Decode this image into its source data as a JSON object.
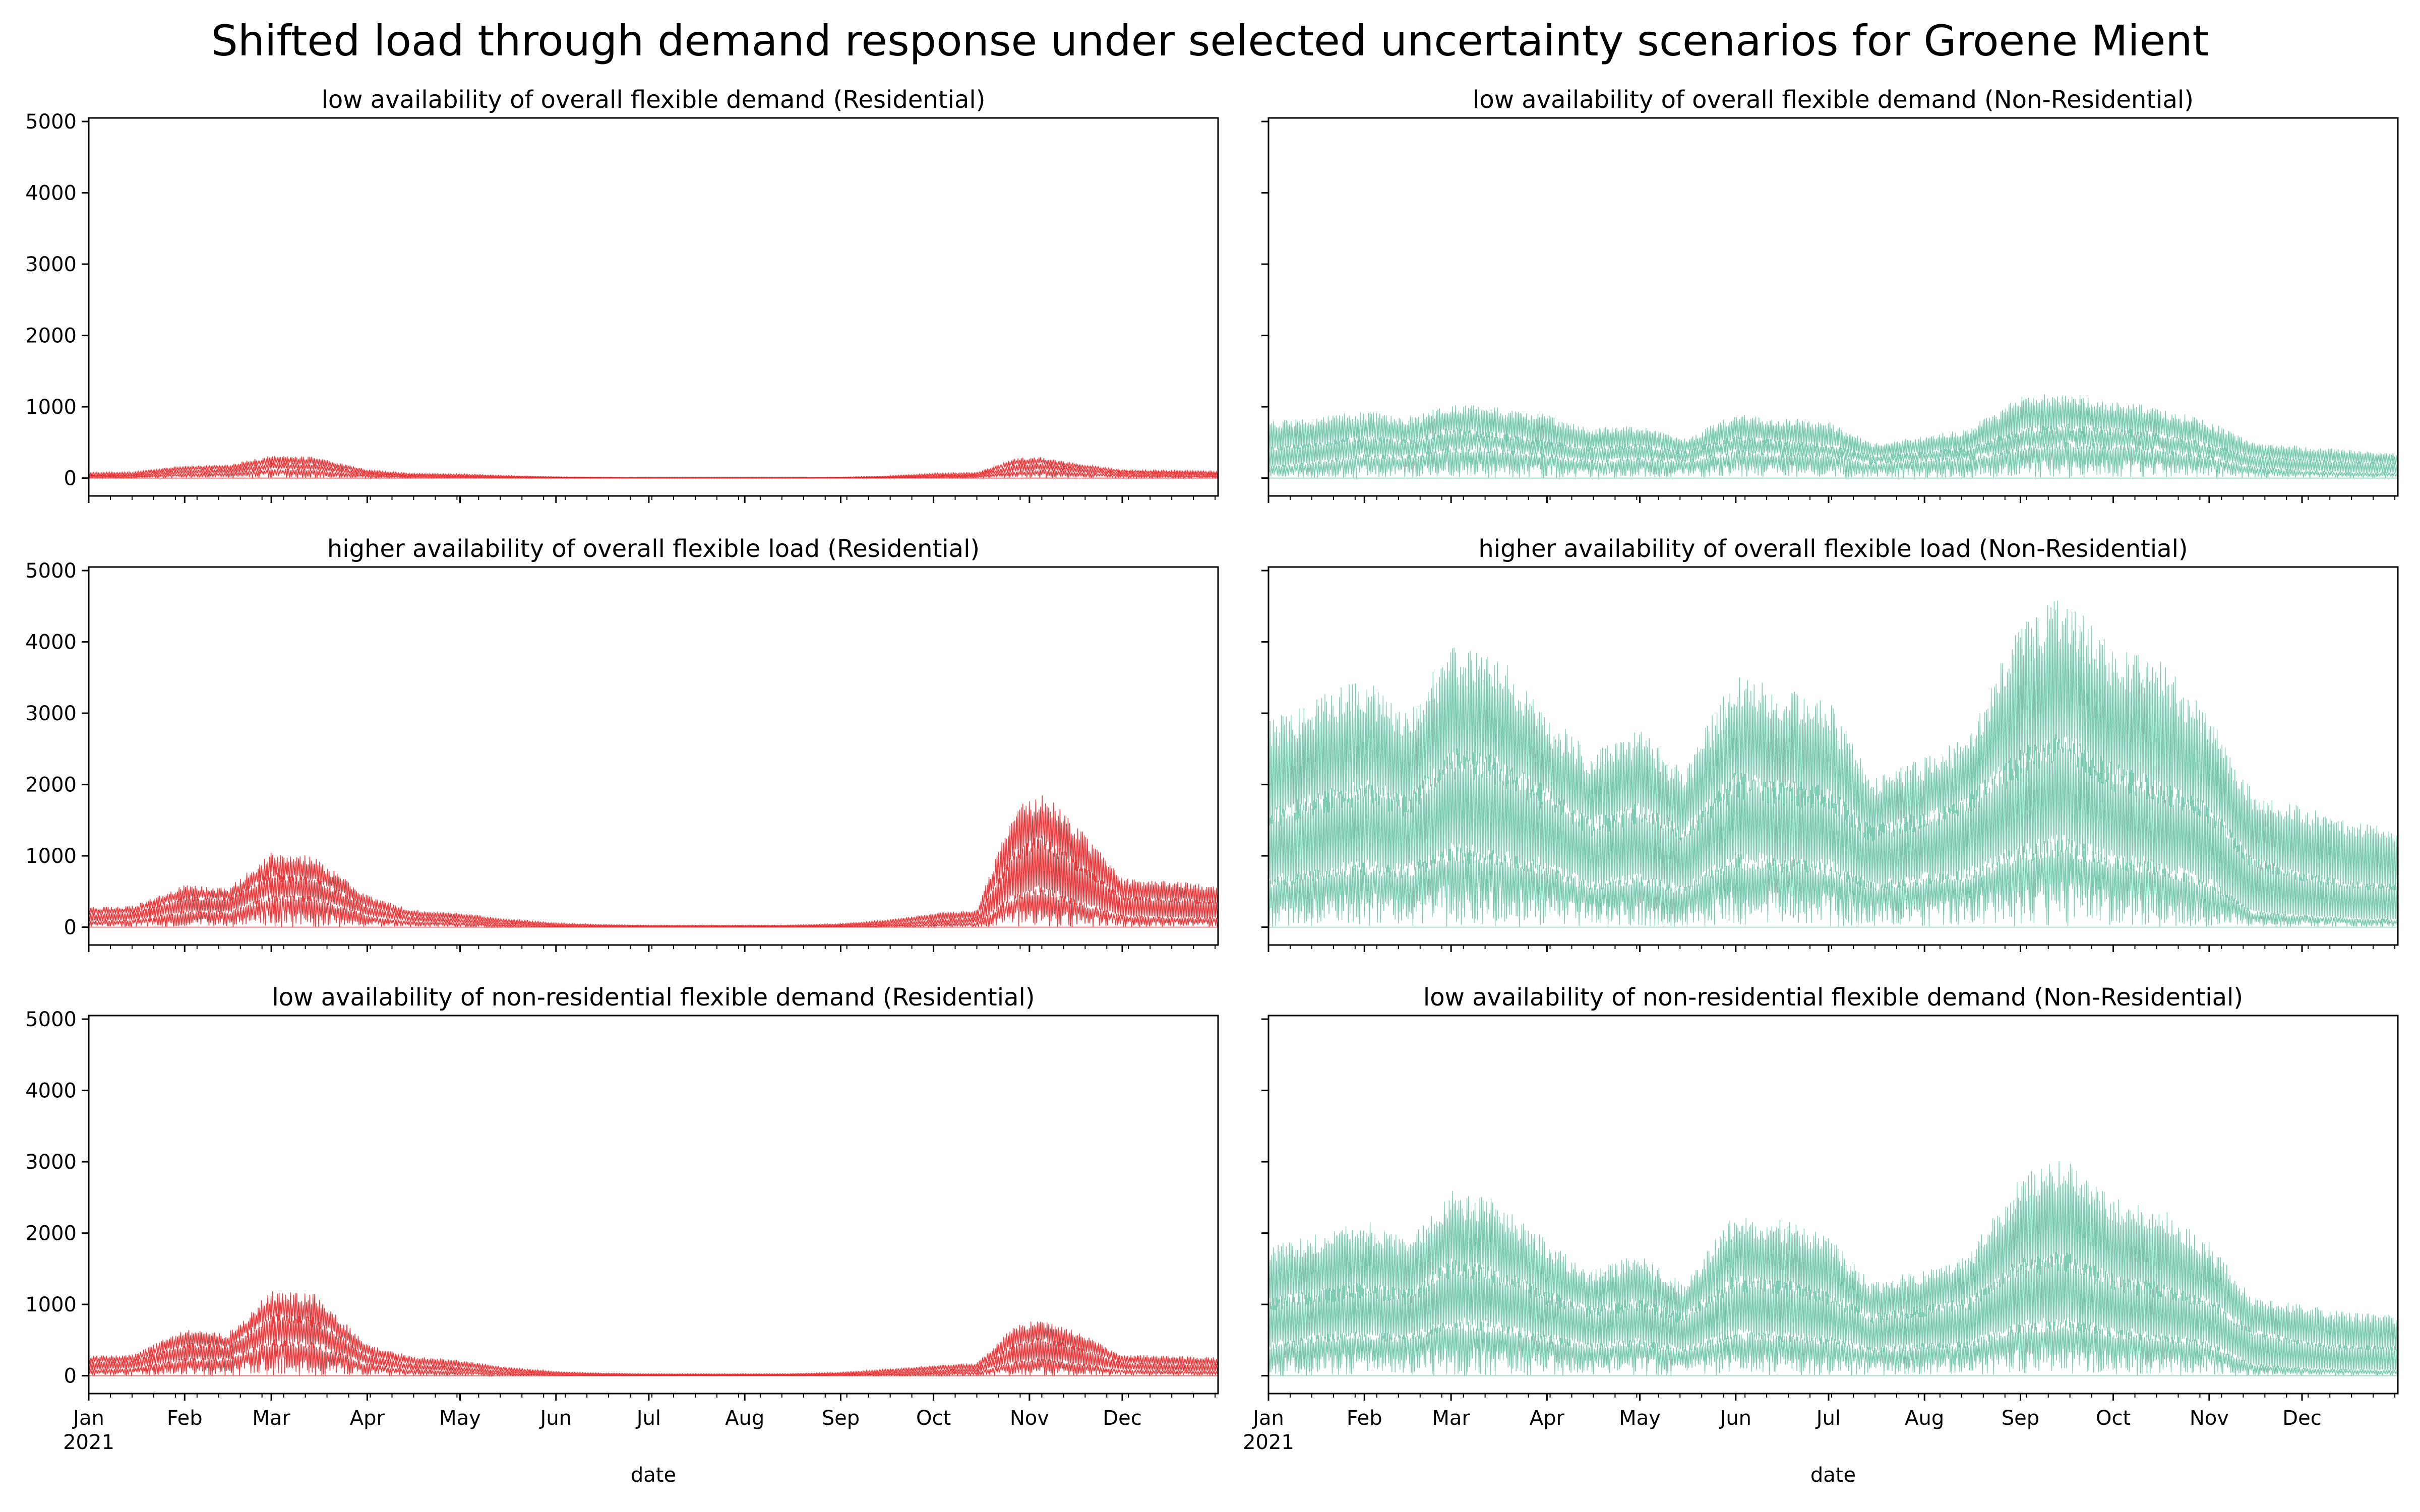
{
  "figure": {
    "title": "Shifted load through demand response under selected uncertainty scenarios for Groene Mient"
  },
  "colors": {
    "residential": "#e41a1c",
    "non_residential": "#66c2a5",
    "axis": "#000000",
    "background": "#ffffff"
  },
  "chart_data": [
    {
      "type": "line",
      "title": "low availability of overall flexible demand (Residential)",
      "xlabel": "",
      "ylabel": "",
      "ylim": [
        -250,
        5050
      ],
      "yticks": [
        0,
        1000,
        2000,
        3000,
        4000,
        5000
      ],
      "x_ticks": [
        "Jan",
        "Feb",
        "Mar",
        "Apr",
        "May",
        "Jun",
        "Jul",
        "Aug",
        "Sep",
        "Oct",
        "Nov",
        "Dec"
      ],
      "x_tick_year": "",
      "series_color": "residential",
      "envelope": {
        "x": [
          "2021-01-01",
          "2021-01-15",
          "2021-02-01",
          "2021-02-15",
          "2021-03-01",
          "2021-03-15",
          "2021-04-01",
          "2021-04-15",
          "2021-05-01",
          "2021-05-15",
          "2021-06-01",
          "2021-06-15",
          "2021-07-01",
          "2021-07-15",
          "2021-08-01",
          "2021-08-15",
          "2021-09-01",
          "2021-09-15",
          "2021-10-01",
          "2021-10-15",
          "2021-10-27",
          "2021-11-05",
          "2021-11-15",
          "2021-12-01",
          "2021-12-15",
          "2021-12-31"
        ],
        "high": [
          80,
          90,
          180,
          190,
          320,
          300,
          120,
          70,
          60,
          40,
          20,
          15,
          10,
          10,
          10,
          10,
          15,
          30,
          70,
          80,
          280,
          300,
          220,
          120,
          110,
          100
        ],
        "mid": [
          40,
          45,
          110,
          120,
          200,
          190,
          70,
          40,
          30,
          20,
          10,
          8,
          5,
          5,
          5,
          5,
          8,
          15,
          35,
          45,
          180,
          200,
          150,
          80,
          70,
          60
        ],
        "low": [
          20,
          20,
          60,
          70,
          120,
          110,
          40,
          20,
          15,
          10,
          5,
          3,
          2,
          2,
          2,
          2,
          3,
          8,
          15,
          25,
          90,
          110,
          80,
          40,
          35,
          30
        ]
      }
    },
    {
      "type": "line",
      "title": "low availability of overall flexible demand (Non-Residential)",
      "xlabel": "",
      "ylabel": "",
      "ylim": [
        -250,
        5050
      ],
      "yticks": [
        0,
        1000,
        2000,
        3000,
        4000,
        5000
      ],
      "x_ticks": [
        "Jan",
        "Feb",
        "Mar",
        "Apr",
        "May",
        "Jun",
        "Jul",
        "Aug",
        "Sep",
        "Oct",
        "Nov",
        "Dec"
      ],
      "x_tick_year": "",
      "series_color": "non_residential",
      "envelope": {
        "x": [
          "2021-01-01",
          "2021-01-15",
          "2021-02-01",
          "2021-02-15",
          "2021-03-01",
          "2021-03-15",
          "2021-04-01",
          "2021-04-15",
          "2021-05-01",
          "2021-05-15",
          "2021-06-01",
          "2021-06-15",
          "2021-07-01",
          "2021-07-15",
          "2021-08-01",
          "2021-08-15",
          "2021-09-01",
          "2021-09-15",
          "2021-10-01",
          "2021-10-15",
          "2021-11-01",
          "2021-11-15",
          "2021-12-01",
          "2021-12-15",
          "2021-12-31"
        ],
        "high": [
          800,
          850,
          950,
          850,
          1050,
          1000,
          900,
          700,
          750,
          550,
          900,
          850,
          800,
          500,
          600,
          700,
          1150,
          1200,
          1100,
          1000,
          800,
          500,
          450,
          400,
          350
        ],
        "mid": [
          400,
          450,
          550,
          500,
          650,
          600,
          500,
          400,
          450,
          350,
          550,
          500,
          450,
          300,
          350,
          400,
          650,
          700,
          650,
          600,
          450,
          300,
          250,
          220,
          200
        ],
        "low": [
          150,
          200,
          300,
          280,
          400,
          380,
          300,
          220,
          260,
          220,
          350,
          320,
          300,
          200,
          240,
          260,
          400,
          450,
          420,
          380,
          280,
          150,
          100,
          80,
          70
        ]
      }
    },
    {
      "type": "line",
      "title": "higher availability of overall flexible load (Residential)",
      "xlabel": "",
      "ylabel": "",
      "ylim": [
        -250,
        5050
      ],
      "yticks": [
        0,
        1000,
        2000,
        3000,
        4000,
        5000
      ],
      "x_ticks": [
        "Jan",
        "Feb",
        "Mar",
        "Apr",
        "May",
        "Jun",
        "Jul",
        "Aug",
        "Sep",
        "Oct",
        "Nov",
        "Dec"
      ],
      "x_tick_year": "",
      "series_color": "residential",
      "envelope": {
        "x": [
          "2021-01-01",
          "2021-01-15",
          "2021-02-01",
          "2021-02-15",
          "2021-03-01",
          "2021-03-15",
          "2021-04-01",
          "2021-04-15",
          "2021-05-01",
          "2021-05-15",
          "2021-06-01",
          "2021-06-15",
          "2021-07-01",
          "2021-07-15",
          "2021-08-01",
          "2021-08-15",
          "2021-09-01",
          "2021-09-15",
          "2021-10-01",
          "2021-10-15",
          "2021-10-27",
          "2021-11-05",
          "2021-11-15",
          "2021-12-01",
          "2021-12-15",
          "2021-12-31"
        ],
        "high": [
          280,
          300,
          600,
          550,
          1050,
          1000,
          450,
          250,
          200,
          120,
          60,
          40,
          30,
          30,
          30,
          30,
          50,
          100,
          200,
          250,
          1700,
          1900,
          1500,
          700,
          650,
          600
        ],
        "mid": [
          180,
          200,
          400,
          380,
          700,
          650,
          280,
          150,
          110,
          70,
          30,
          20,
          15,
          15,
          15,
          15,
          25,
          50,
          100,
          130,
          1000,
          1200,
          900,
          400,
          380,
          350
        ],
        "low": [
          80,
          100,
          200,
          200,
          400,
          380,
          150,
          80,
          60,
          30,
          10,
          5,
          5,
          5,
          5,
          5,
          10,
          20,
          40,
          60,
          400,
          500,
          350,
          150,
          130,
          120
        ]
      }
    },
    {
      "type": "line",
      "title": "higher availability of overall flexible load (Non-Residential)",
      "xlabel": "",
      "ylabel": "",
      "ylim": [
        -250,
        5050
      ],
      "yticks": [
        0,
        1000,
        2000,
        3000,
        4000,
        5000
      ],
      "x_ticks": [
        "Jan",
        "Feb",
        "Mar",
        "Apr",
        "May",
        "Jun",
        "Jul",
        "Aug",
        "Sep",
        "Oct",
        "Nov",
        "Dec"
      ],
      "x_tick_year": "",
      "series_color": "non_residential",
      "envelope": {
        "x": [
          "2021-01-01",
          "2021-01-15",
          "2021-02-01",
          "2021-02-15",
          "2021-03-01",
          "2021-03-15",
          "2021-04-01",
          "2021-04-15",
          "2021-05-01",
          "2021-05-15",
          "2021-06-01",
          "2021-06-15",
          "2021-07-01",
          "2021-07-15",
          "2021-08-01",
          "2021-08-15",
          "2021-09-01",
          "2021-09-15",
          "2021-10-01",
          "2021-10-15",
          "2021-11-01",
          "2021-11-15",
          "2021-12-01",
          "2021-12-15",
          "2021-12-31"
        ],
        "high": [
          2900,
          3200,
          3500,
          3000,
          4000,
          3900,
          3000,
          2500,
          2800,
          2200,
          3600,
          3400,
          3200,
          2100,
          2400,
          2700,
          4300,
          4700,
          3900,
          3800,
          3000,
          1900,
          1700,
          1500,
          1400
        ],
        "mid": [
          1500,
          1700,
          1900,
          1700,
          2300,
          2200,
          1800,
          1400,
          1600,
          1300,
          2000,
          1900,
          1800,
          1300,
          1500,
          1700,
          2300,
          2500,
          2100,
          1900,
          1600,
          900,
          700,
          600,
          550
        ],
        "low": [
          600,
          700,
          800,
          750,
          1000,
          950,
          800,
          550,
          650,
          500,
          900,
          850,
          800,
          550,
          650,
          700,
          1000,
          1100,
          900,
          800,
          600,
          200,
          150,
          120,
          100
        ]
      }
    },
    {
      "type": "line",
      "title": "low availability of non-residential flexible demand (Residential)",
      "xlabel": "date",
      "ylabel": "",
      "ylim": [
        -250,
        5050
      ],
      "yticks": [
        0,
        1000,
        2000,
        3000,
        4000,
        5000
      ],
      "x_ticks": [
        "Jan",
        "Feb",
        "Mar",
        "Apr",
        "May",
        "Jun",
        "Jul",
        "Aug",
        "Sep",
        "Oct",
        "Nov",
        "Dec"
      ],
      "x_tick_year": "2021",
      "series_color": "residential",
      "envelope": {
        "x": [
          "2021-01-01",
          "2021-01-15",
          "2021-02-01",
          "2021-02-15",
          "2021-03-01",
          "2021-03-15",
          "2021-04-01",
          "2021-04-15",
          "2021-05-01",
          "2021-05-15",
          "2021-06-01",
          "2021-06-15",
          "2021-07-01",
          "2021-07-15",
          "2021-08-01",
          "2021-08-15",
          "2021-09-01",
          "2021-09-15",
          "2021-10-01",
          "2021-10-15",
          "2021-10-27",
          "2021-11-05",
          "2021-11-15",
          "2021-12-01",
          "2021-12-15",
          "2021-12-31"
        ],
        "high": [
          280,
          300,
          650,
          600,
          1200,
          1150,
          450,
          280,
          220,
          130,
          60,
          40,
          30,
          30,
          30,
          30,
          50,
          90,
          150,
          180,
          700,
          800,
          650,
          300,
          280,
          260
        ],
        "mid": [
          180,
          200,
          420,
          400,
          800,
          750,
          280,
          160,
          120,
          70,
          30,
          20,
          15,
          15,
          15,
          15,
          25,
          45,
          80,
          100,
          420,
          500,
          400,
          180,
          160,
          150
        ],
        "low": [
          80,
          100,
          220,
          220,
          450,
          420,
          150,
          80,
          60,
          30,
          10,
          5,
          5,
          5,
          5,
          5,
          10,
          20,
          35,
          50,
          180,
          220,
          170,
          80,
          70,
          60
        ]
      }
    },
    {
      "type": "line",
      "title": "low availability of non-residential flexible demand (Non-Residential)",
      "xlabel": "date",
      "ylabel": "",
      "ylim": [
        -250,
        5050
      ],
      "yticks": [
        0,
        1000,
        2000,
        3000,
        4000,
        5000
      ],
      "x_ticks": [
        "Jan",
        "Feb",
        "Mar",
        "Apr",
        "May",
        "Jun",
        "Jul",
        "Aug",
        "Sep",
        "Oct",
        "Nov",
        "Dec"
      ],
      "x_tick_year": "2021",
      "series_color": "non_residential",
      "envelope": {
        "x": [
          "2021-01-01",
          "2021-01-15",
          "2021-02-01",
          "2021-02-15",
          "2021-03-01",
          "2021-03-15",
          "2021-04-01",
          "2021-04-15",
          "2021-05-01",
          "2021-05-15",
          "2021-06-01",
          "2021-06-15",
          "2021-07-01",
          "2021-07-15",
          "2021-08-01",
          "2021-08-15",
          "2021-09-01",
          "2021-09-15",
          "2021-10-01",
          "2021-10-15",
          "2021-11-01",
          "2021-11-15",
          "2021-12-01",
          "2021-12-15",
          "2021-12-31"
        ],
        "high": [
          1800,
          2000,
          2200,
          1900,
          2600,
          2500,
          1900,
          1500,
          1700,
          1300,
          2300,
          2200,
          2000,
          1300,
          1500,
          1700,
          2800,
          3100,
          2500,
          2400,
          1900,
          1100,
          1000,
          900,
          850
        ],
        "mid": [
          1000,
          1100,
          1200,
          1100,
          1500,
          1400,
          1100,
          900,
          1000,
          800,
          1300,
          1250,
          1100,
          800,
          900,
          1000,
          1500,
          1600,
          1300,
          1200,
          1000,
          600,
          450,
          400,
          380
        ],
        "low": [
          400,
          500,
          550,
          500,
          700,
          650,
          500,
          400,
          450,
          350,
          550,
          520,
          480,
          350,
          400,
          420,
          650,
          700,
          580,
          520,
          420,
          150,
          100,
          80,
          70
        ]
      }
    }
  ]
}
